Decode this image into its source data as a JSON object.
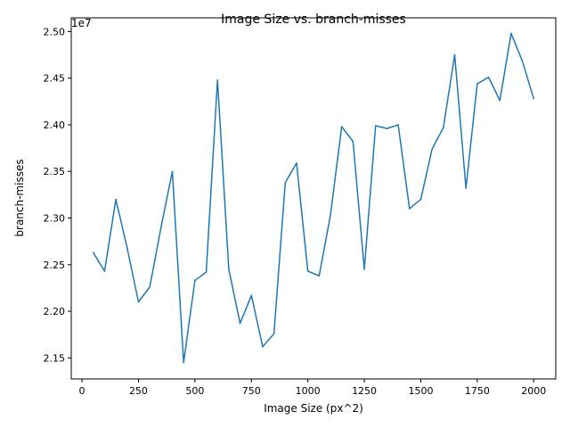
{
  "chart_data": {
    "type": "line",
    "title": "Image Size vs. branch-misses",
    "xlabel": "Image Size (px^2)",
    "ylabel": "branch-misses",
    "offset_label": "1e7",
    "xlim": [
      -47.5,
      2097.5
    ],
    "ylim": [
      2.1274,
      2.5147
    ],
    "x_ticks": [
      0,
      250,
      500,
      750,
      1000,
      1250,
      1500,
      1750,
      2000
    ],
    "x_tick_labels": [
      "0",
      "250",
      "500",
      "750",
      "1000",
      "1250",
      "1500",
      "1750",
      "2000"
    ],
    "y_ticks": [
      2.15,
      2.2,
      2.25,
      2.3,
      2.35,
      2.4,
      2.45,
      2.5
    ],
    "y_tick_labels": [
      "2.15",
      "2.20",
      "2.25",
      "2.30",
      "2.35",
      "2.40",
      "2.45",
      "2.50"
    ],
    "grid": false,
    "line_color": "#1f77b4",
    "series": [
      {
        "x": [
          50,
          100,
          150,
          200,
          250,
          300,
          350,
          400,
          450,
          500,
          550,
          600,
          650,
          700,
          750,
          800,
          850,
          900,
          950,
          1000,
          1050,
          1100,
          1150,
          1200,
          1250,
          1300,
          1350,
          1400,
          1450,
          1500,
          1550,
          1600,
          1650,
          1700,
          1750,
          1800,
          1850,
          1900,
          1950,
          2000
        ],
        "y": [
          2.263,
          2.243,
          2.32,
          2.268,
          2.21,
          2.226,
          2.29,
          2.35,
          2.145,
          2.233,
          2.242,
          2.448,
          2.245,
          2.187,
          2.217,
          2.162,
          2.176,
          2.338,
          2.359,
          2.243,
          2.238,
          2.303,
          2.398,
          2.382,
          2.245,
          2.399,
          2.396,
          2.4,
          2.31,
          2.32,
          2.374,
          2.397,
          2.475,
          2.332,
          2.444,
          2.451,
          2.426,
          2.498,
          2.468,
          2.428
        ]
      }
    ]
  }
}
